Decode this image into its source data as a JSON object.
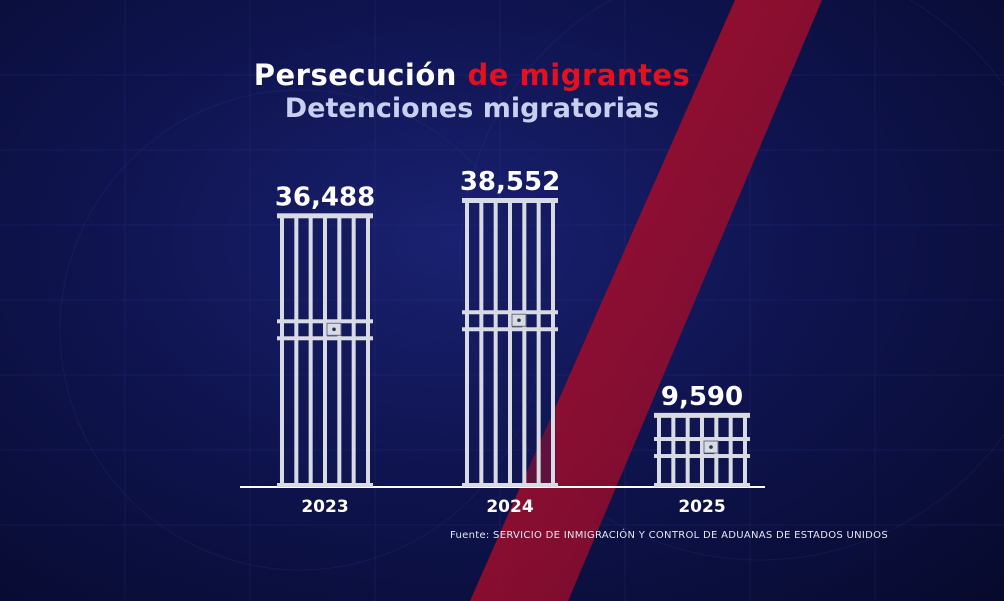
{
  "title": {
    "line1_part1": "Persecución ",
    "line1_part2": "de migrantes",
    "line2": "Detenciones migratorias"
  },
  "source_label": "Fuente: SERVICIO DE INMIGRACIÓN Y CONTROL DE ADUANAS DE ESTADOS UNIDOS",
  "colors": {
    "background": "#0f1450",
    "accent": "#e3101e",
    "bars": "#d9dbe4",
    "text": "#ffffff"
  },
  "chart_data": {
    "type": "bar",
    "categories": [
      "2023",
      "2024",
      "2025"
    ],
    "values": [
      36488,
      38552,
      9590
    ],
    "data_labels": [
      "36,488",
      "38,552",
      "9,590"
    ],
    "ylim": [
      0,
      40000
    ],
    "grid": false,
    "legend": "none"
  }
}
